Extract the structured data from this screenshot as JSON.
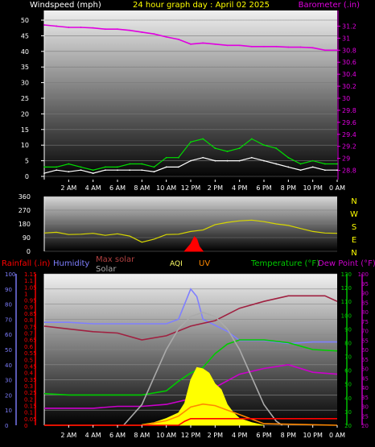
{
  "colors": {
    "wind": "#ffffff",
    "gust": "#00dd00",
    "barometer": "#e000e0",
    "direction": "#d6d600",
    "rain": "#ff0000",
    "humidity": "#7f7fff",
    "solar": "#ffff00",
    "max_solar": "#aaaaaa",
    "uv": "#ff8800",
    "temperature": "#00cc00",
    "dew_point": "#cc00cc",
    "aqi": "#ffff66",
    "heat_index": "#a02040",
    "title": "#ffff00",
    "axis": "#ffffff"
  },
  "chart_data": [
    {
      "type": "line",
      "title": "24 hour graph day : April 02 2025",
      "left_axis": {
        "label": "Windspeed (mph)",
        "ticks": [
          "0",
          "5",
          "10",
          "15",
          "20",
          "25",
          "30",
          "35",
          "40",
          "45",
          "50"
        ],
        "range": [
          0,
          50
        ]
      },
      "right_axis": {
        "label": "Barometer (.in)",
        "ticks": [
          "28.8",
          "29",
          "29.2",
          "29.4",
          "29.6",
          "29.8",
          "30",
          "30.2",
          "30.4",
          "30.6",
          "30.8",
          "31",
          "31.2"
        ],
        "range": [
          28.7,
          31.3
        ]
      },
      "x_ticks": [
        "2 AM",
        "4 AM",
        "6 AM",
        "8 AM",
        "10 AM",
        "12 PM",
        "2 PM",
        "4 PM",
        "6 PM",
        "8 PM",
        "10 PM",
        "0 AM"
      ],
      "series": [
        {
          "name": "Barometer",
          "x": [
            0,
            1,
            2,
            3,
            4,
            5,
            6,
            7,
            8,
            9,
            10,
            11,
            12,
            13,
            14,
            15,
            16,
            17,
            18,
            19,
            20,
            21,
            22,
            23,
            24
          ],
          "values": [
            31.22,
            31.2,
            31.18,
            31.18,
            31.17,
            31.15,
            31.15,
            31.13,
            31.1,
            31.07,
            31.02,
            30.98,
            30.9,
            30.92,
            30.9,
            30.88,
            30.88,
            30.86,
            30.86,
            30.86,
            30.85,
            30.85,
            30.84,
            30.8,
            30.8
          ]
        },
        {
          "name": "Wind",
          "x": [
            0,
            1,
            2,
            3,
            4,
            5,
            6,
            7,
            8,
            9,
            10,
            11,
            12,
            13,
            14,
            15,
            16,
            17,
            18,
            19,
            20,
            21,
            22,
            23,
            24
          ],
          "values": [
            1,
            2,
            1.5,
            2,
            1,
            2,
            2,
            2,
            2,
            1.5,
            3,
            3,
            5,
            6,
            5,
            5,
            5,
            6,
            5,
            4,
            3,
            2,
            3,
            2,
            2
          ]
        },
        {
          "name": "Gust",
          "x": [
            0,
            1,
            2,
            3,
            4,
            5,
            6,
            7,
            8,
            9,
            10,
            11,
            12,
            13,
            14,
            15,
            16,
            17,
            18,
            19,
            20,
            21,
            22,
            23,
            24
          ],
          "values": [
            3,
            3,
            4,
            3,
            2,
            3,
            3,
            4,
            4,
            3,
            6,
            6,
            11,
            12,
            9,
            8,
            9,
            12,
            10,
            9,
            6,
            4,
            5,
            4,
            4
          ]
        }
      ]
    },
    {
      "type": "line",
      "left_axis": {
        "ticks": [
          "0",
          "90",
          "180",
          "270",
          "360"
        ],
        "range": [
          0,
          360
        ]
      },
      "right_axis": {
        "ticks": [
          "N",
          "W",
          "S",
          "E",
          "N"
        ]
      },
      "series": [
        {
          "name": "Wind direction",
          "x": [
            0,
            1,
            2,
            3,
            4,
            5,
            6,
            7,
            8,
            9,
            10,
            11,
            12,
            13,
            14,
            15,
            16,
            17,
            18,
            19,
            20,
            21,
            22,
            23,
            24
          ],
          "values": [
            120,
            125,
            110,
            112,
            118,
            105,
            115,
            100,
            60,
            80,
            110,
            112,
            130,
            140,
            175,
            190,
            200,
            205,
            195,
            180,
            170,
            150,
            130,
            120,
            118
          ]
        },
        {
          "name": "Rainfall",
          "x": [
            11.5,
            12,
            12.3,
            12.5,
            12.7,
            13
          ],
          "values": [
            0,
            0.3,
            0.6,
            0.5,
            0.2,
            0
          ]
        }
      ]
    },
    {
      "type": "line",
      "legend": [
        "Rainfall (.in)",
        "Humidity",
        "Max solar",
        "Solar",
        "AQI",
        "UV",
        "Temperature (°F)",
        "Dew Point (°F)"
      ],
      "axis_rain": {
        "ticks": [
          "0",
          "0.05",
          "0.1",
          "0.15",
          "0.2",
          "0.25",
          "0.3",
          "0.35",
          "0.4",
          "0.45",
          "0.5",
          "0.55",
          "0.6",
          "0.65",
          "0.7",
          "0.75",
          "0.8",
          "0.85",
          "0.9",
          "0.95",
          "1",
          "1.05",
          "1.1",
          "1.15"
        ]
      },
      "axis_humidity": {
        "ticks": [
          "0",
          "10",
          "20",
          "30",
          "40",
          "50",
          "60",
          "70",
          "80",
          "90",
          "100"
        ]
      },
      "axis_temperature": {
        "ticks": [
          "20",
          "30",
          "40",
          "50",
          "60",
          "70",
          "80",
          "90",
          "100",
          "110",
          "120",
          "130"
        ]
      },
      "axis_dew": {
        "ticks": [
          "20",
          "25",
          "30",
          "35",
          "40",
          "45",
          "50",
          "55",
          "60",
          "65",
          "70",
          "75",
          "80",
          "85",
          "90",
          "95",
          "100"
        ]
      },
      "x_ticks": [
        "2 AM",
        "4 AM",
        "6 AM",
        "8 AM",
        "10 AM",
        "12 PM",
        "2 PM",
        "4 PM",
        "6 PM",
        "8 PM",
        "10 PM",
        "0 AM"
      ],
      "series": [
        {
          "name": "Humidity",
          "x": [
            0,
            2,
            4,
            6,
            8,
            10,
            11,
            12,
            12.5,
            13,
            14,
            15,
            16,
            18,
            20,
            22,
            24
          ],
          "values": [
            68,
            68,
            67,
            67,
            67,
            67,
            70,
            90,
            85,
            70,
            66,
            62,
            56,
            56,
            54,
            55,
            55
          ]
        },
        {
          "name": "Heat index",
          "x": [
            0,
            2,
            4,
            6,
            8,
            10,
            12,
            14,
            16,
            18,
            20,
            22,
            23,
            24
          ],
          "values": [
            92,
            90,
            88,
            87,
            82,
            85,
            92,
            96,
            105,
            110,
            114,
            114,
            114,
            110
          ]
        },
        {
          "name": "Temperature",
          "x": [
            0,
            2,
            4,
            6,
            8,
            10,
            11,
            12,
            13,
            14,
            15,
            16,
            18,
            20,
            22,
            24
          ],
          "values": [
            43,
            42,
            42,
            42,
            42,
            45,
            52,
            58,
            62,
            72,
            79,
            82,
            82,
            80,
            75,
            74
          ]
        },
        {
          "name": "Dew Point",
          "x": [
            0,
            2,
            4,
            6,
            8,
            10,
            12,
            14,
            16,
            18,
            20,
            22,
            24
          ],
          "values": [
            29,
            29,
            29,
            30,
            30,
            31,
            34,
            40,
            47,
            50,
            52,
            48,
            47
          ]
        },
        {
          "name": "Max solar",
          "x": [
            6.5,
            8,
            9,
            10,
            11,
            12,
            13,
            14,
            15,
            16,
            17,
            18,
            19,
            19.5
          ],
          "values": [
            0,
            150,
            350,
            550,
            700,
            790,
            820,
            790,
            700,
            550,
            350,
            150,
            30,
            0
          ]
        },
        {
          "name": "Solar",
          "x": [
            8,
            9,
            10,
            11,
            11.5,
            12,
            12.5,
            13,
            13.5,
            14,
            14.5,
            15,
            15.5,
            16,
            17,
            18
          ],
          "values": [
            5,
            20,
            50,
            90,
            160,
            330,
            420,
            410,
            380,
            300,
            260,
            150,
            90,
            50,
            20,
            0
          ]
        },
        {
          "name": "UV",
          "x": [
            0,
            8,
            10,
            11,
            12,
            13,
            14,
            15,
            16,
            18,
            24
          ],
          "values": [
            0,
            0,
            0.3,
            0.6,
            1.2,
            1.4,
            1.3,
            1,
            0.7,
            0.1,
            0
          ]
        },
        {
          "name": "Rainfall",
          "x": [
            0,
            11,
            11.5,
            12,
            24
          ],
          "values": [
            0,
            0,
            0.03,
            0.05,
            0.05
          ]
        }
      ]
    }
  ]
}
